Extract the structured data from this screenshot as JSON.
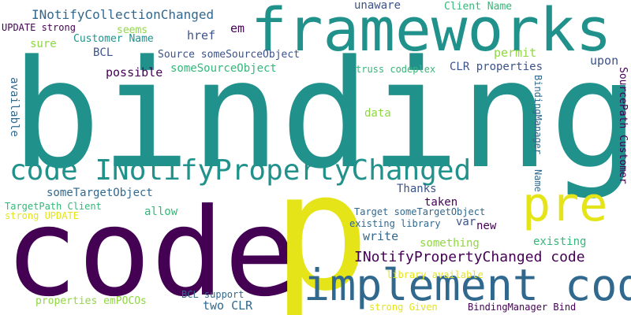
{
  "palette": {
    "purple": "#440154",
    "indigo": "#3b528b",
    "blue": "#31688e",
    "teal": "#21918c",
    "green": "#35b779",
    "lime": "#90d743",
    "yellow": "#e4e419",
    "background": "#ffffff"
  },
  "words": [
    {
      "text": "binding",
      "color": "teal"
    },
    {
      "text": "frameworks",
      "color": "teal"
    },
    {
      "text": "code",
      "color": "purple"
    },
    {
      "text": "p",
      "color": "yellow"
    },
    {
      "text": "pre",
      "color": "yellow"
    },
    {
      "text": "implement code",
      "color": "blue"
    },
    {
      "text": "code INotifyPropertyChanged",
      "color": "teal"
    },
    {
      "text": "INotifyPropertyChanged code",
      "color": "purple"
    },
    {
      "text": "INotifyCollectionChanged",
      "color": "blue"
    },
    {
      "text": "unaware",
      "color": "indigo"
    },
    {
      "text": "Client Name",
      "color": "green"
    },
    {
      "text": "UPDATE strong",
      "color": "purple"
    },
    {
      "text": "seems",
      "color": "lime"
    },
    {
      "text": "em",
      "color": "purple"
    },
    {
      "text": "Customer Name",
      "color": "teal"
    },
    {
      "text": "href",
      "color": "indigo"
    },
    {
      "text": "sure",
      "color": "lime"
    },
    {
      "text": "BCL",
      "color": "indigo"
    },
    {
      "text": "Source someSourceObject",
      "color": "indigo"
    },
    {
      "text": "permit",
      "color": "lime"
    },
    {
      "text": "upon",
      "color": "indigo"
    },
    {
      "text": "possible",
      "color": "purple"
    },
    {
      "text": "someSourceObject",
      "color": "green"
    },
    {
      "text": "truss codeplex",
      "color": "green"
    },
    {
      "text": "CLR properties",
      "color": "indigo"
    },
    {
      "text": "data",
      "color": "lime"
    },
    {
      "text": "available",
      "color": "blue"
    },
    {
      "text": "BindingManager",
      "color": "blue"
    },
    {
      "text": "SourcePath Customer",
      "color": "purple"
    },
    {
      "text": "someTargetObject",
      "color": "blue"
    },
    {
      "text": "Thanks",
      "color": "indigo"
    },
    {
      "text": "TargetPath Client",
      "color": "green"
    },
    {
      "text": "strong UPDATE",
      "color": "yellow"
    },
    {
      "text": "allow",
      "color": "green"
    },
    {
      "text": "taken",
      "color": "purple"
    },
    {
      "text": "Target someTargetObject",
      "color": "blue"
    },
    {
      "text": "var",
      "color": "indigo"
    },
    {
      "text": "Name",
      "color": "blue"
    },
    {
      "text": "existing library",
      "color": "blue"
    },
    {
      "text": "new",
      "color": "purple"
    },
    {
      "text": "write",
      "color": "blue"
    },
    {
      "text": "something",
      "color": "lime"
    },
    {
      "text": "existing",
      "color": "green"
    },
    {
      "text": "library available",
      "color": "yellow"
    },
    {
      "text": "properties emPOCOs",
      "color": "lime"
    },
    {
      "text": "BCL support",
      "color": "blue"
    },
    {
      "text": "two CLR",
      "color": "blue"
    },
    {
      "text": "strong Given",
      "color": "yellow"
    },
    {
      "text": "BindingManager Bind",
      "color": "purple"
    }
  ]
}
